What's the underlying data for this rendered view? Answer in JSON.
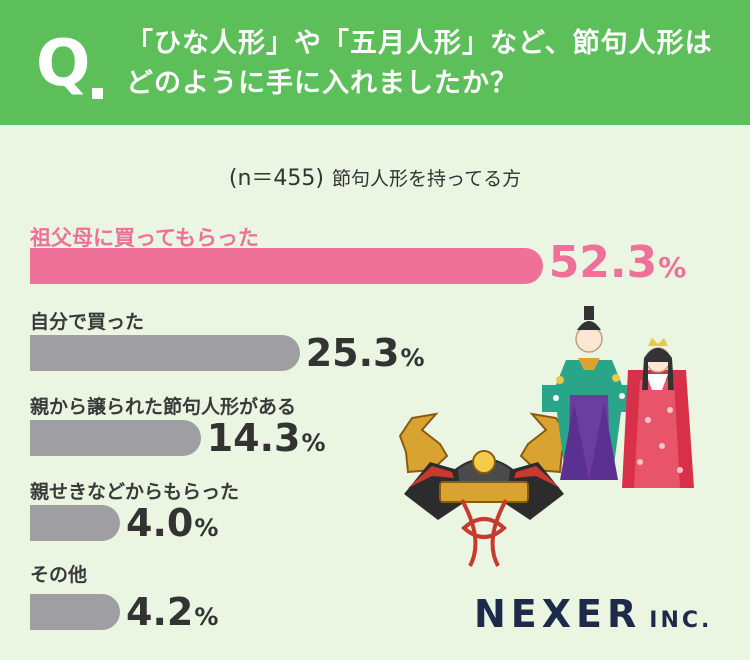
{
  "header": {
    "question_mark": "Q",
    "question_line1": "「ひな人形」や「五月人形」など、節句人形は",
    "question_line2": "どのように手に入れましたか？"
  },
  "note": {
    "sample": "(n＝455)",
    "description": "節句人形を持ってる方"
  },
  "chart_data": {
    "type": "bar",
    "orientation": "horizontal",
    "categories": [
      "祖父母に買ってもらった",
      "自分で買った",
      "親から譲られた節句人形がある",
      "親せきなどからもらった",
      "その他"
    ],
    "values": [
      52.3,
      25.3,
      14.3,
      4.0,
      4.2
    ],
    "value_labels": [
      "52.3",
      "25.3",
      "14.3",
      "4.0",
      "4.2"
    ],
    "unit": "%",
    "colors": [
      "#ef7099",
      "#9e9ea3",
      "#9e9ea3",
      "#9e9ea3",
      "#9e9ea3"
    ],
    "highlight_index": 0,
    "title": "",
    "xlabel": "",
    "ylabel": ""
  },
  "brand": {
    "name": "NEXER",
    "suffix": "INC.",
    "color": "#1d2a4a"
  },
  "theme": {
    "header_bg": "#5cbf5a",
    "page_bg": "#eaf6e2",
    "highlight": "#ef7099",
    "bar_gray": "#9e9ea3"
  }
}
